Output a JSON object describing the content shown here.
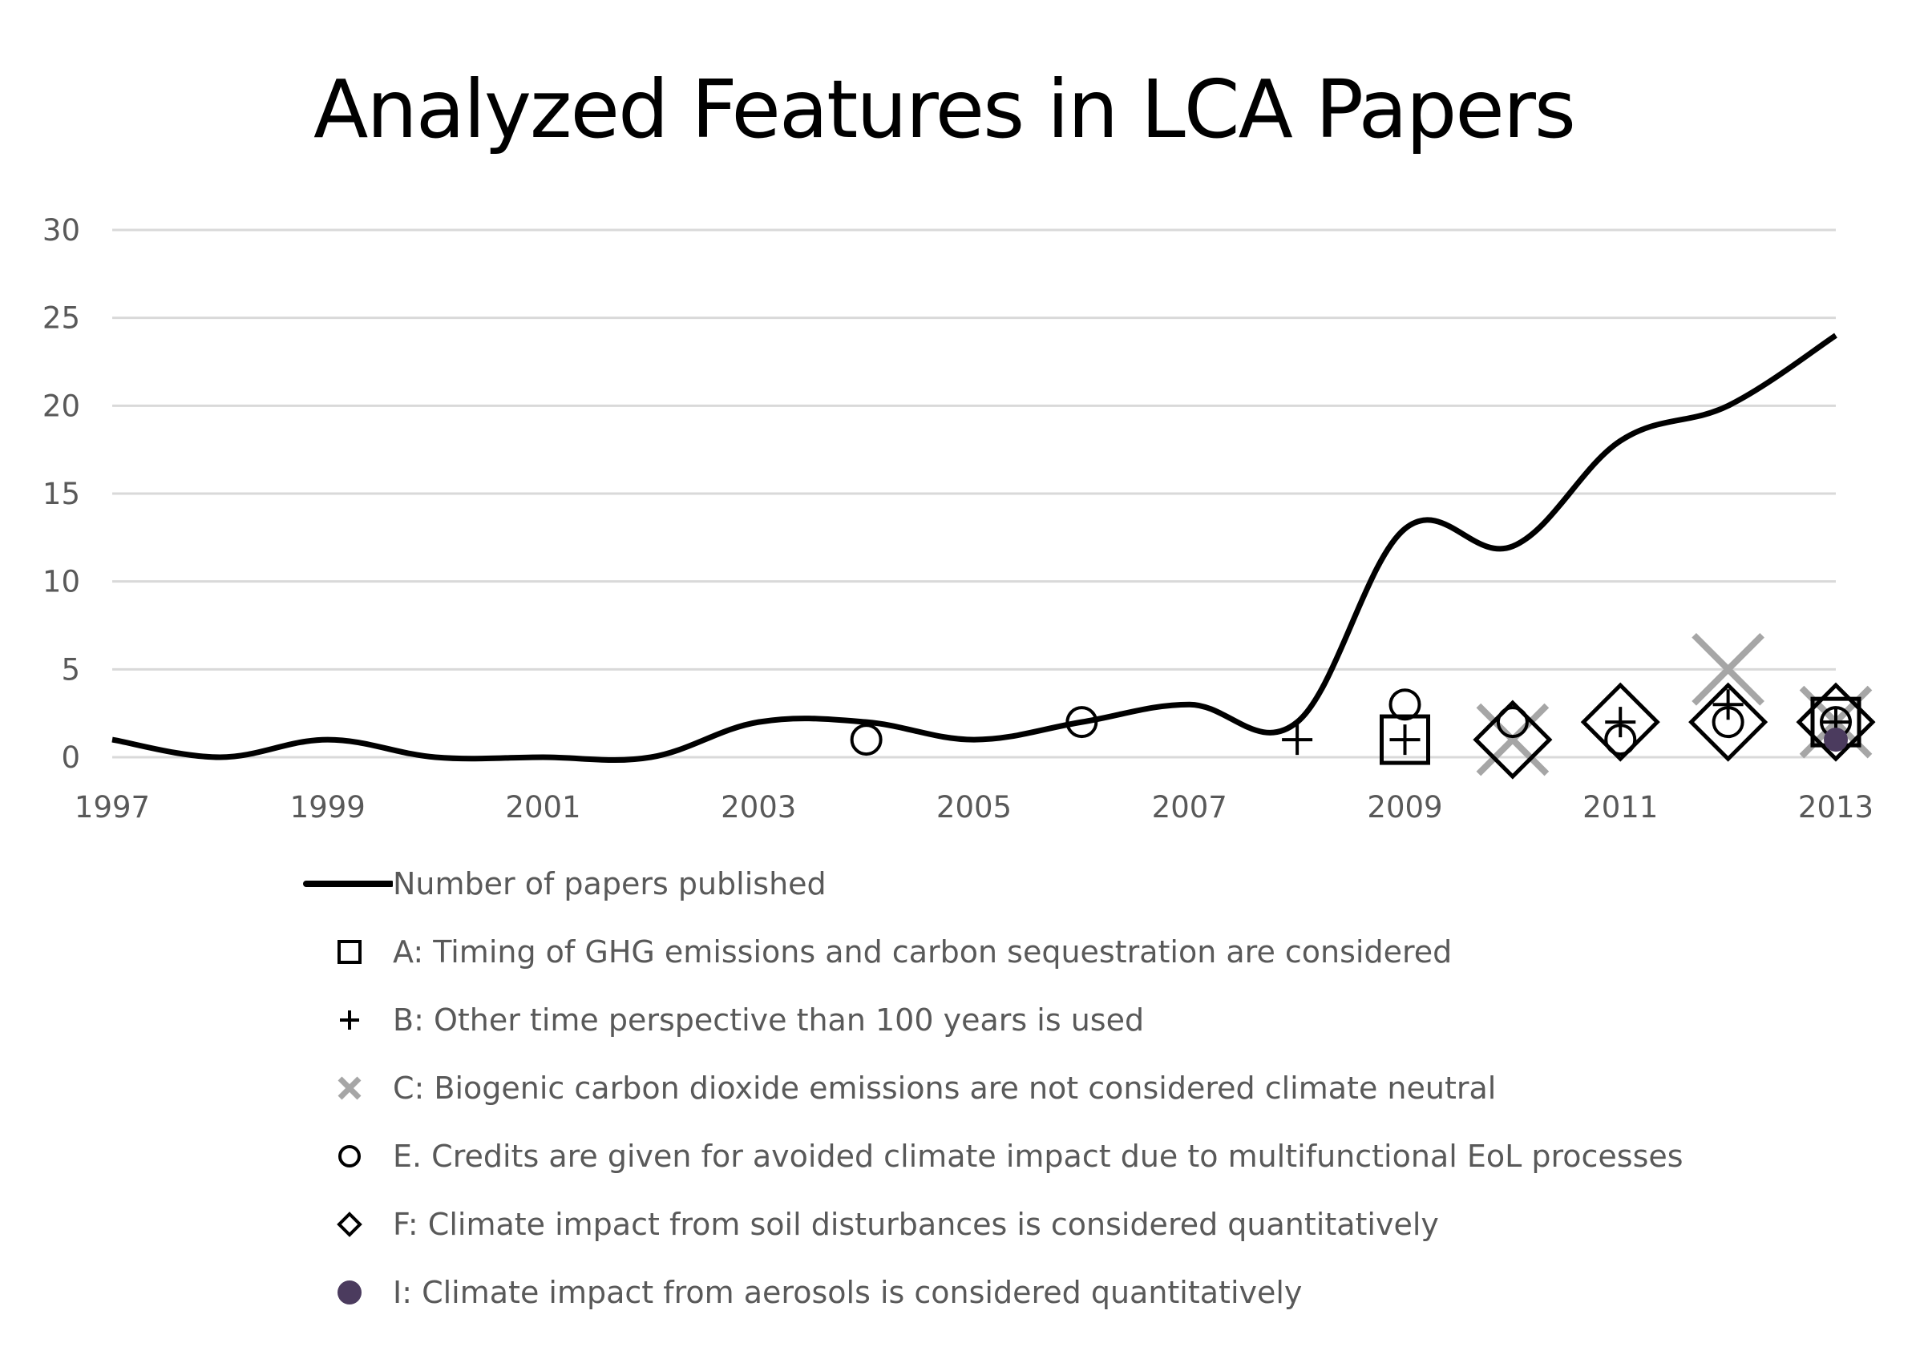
{
  "chart_data": {
    "type": "line",
    "title": "Analyzed Features in LCA Papers",
    "xlabel": "",
    "ylabel": "",
    "xlim": [
      1997,
      2013
    ],
    "ylim": [
      0,
      30
    ],
    "x_tick_labels": [
      "1997",
      "1999",
      "2001",
      "2003",
      "2005",
      "2007",
      "2009",
      "2011",
      "2013"
    ],
    "y_tick_labels": [
      "0",
      "5",
      "10",
      "15",
      "20",
      "25",
      "30"
    ],
    "grid": true,
    "legend_position": "bottom",
    "series": [
      {
        "name": "Number of papers published",
        "marker": "line",
        "color": "#000000",
        "points": [
          [
            1997,
            1
          ],
          [
            1998,
            0
          ],
          [
            1999,
            1
          ],
          [
            2000,
            0
          ],
          [
            2001,
            0
          ],
          [
            2002,
            0
          ],
          [
            2003,
            2
          ],
          [
            2004,
            2
          ],
          [
            2005,
            1
          ],
          [
            2006,
            2
          ],
          [
            2007,
            3
          ],
          [
            2008,
            2
          ],
          [
            2009,
            13
          ],
          [
            2010,
            12
          ],
          [
            2011,
            18
          ],
          [
            2012,
            20
          ],
          [
            2013,
            24
          ]
        ]
      },
      {
        "name": "A: Timing of GHG emissions and carbon sequestration are considered",
        "marker": "square",
        "color": "#000000",
        "points": [
          [
            2009,
            1
          ],
          [
            2013,
            2
          ]
        ]
      },
      {
        "name": "B: Other time perspective than 100 years is used",
        "marker": "plus",
        "color": "#000000",
        "points": [
          [
            2008,
            1
          ],
          [
            2009,
            1
          ],
          [
            2011,
            2
          ],
          [
            2012,
            3
          ],
          [
            2013,
            2
          ]
        ]
      },
      {
        "name": "C: Biogenic carbon dioxide emissions are not considered climate neutral",
        "marker": "x",
        "color": "#a6a6a6",
        "points": [
          [
            2010,
            1
          ],
          [
            2012,
            5
          ],
          [
            2013,
            2
          ]
        ]
      },
      {
        "name": "E. Credits are given for avoided climate impact due to multifunctional EoL processes",
        "marker": "circle",
        "color": "#000000",
        "points": [
          [
            2004,
            1
          ],
          [
            2006,
            2
          ],
          [
            2009,
            3
          ],
          [
            2010,
            2
          ],
          [
            2011,
            1
          ],
          [
            2012,
            2
          ],
          [
            2013,
            2
          ]
        ]
      },
      {
        "name": "F: Climate impact from soil disturbances is considered quantitatively",
        "marker": "diamond",
        "color": "#000000",
        "points": [
          [
            2010,
            1
          ],
          [
            2011,
            2
          ],
          [
            2012,
            2
          ],
          [
            2013,
            2
          ]
        ]
      },
      {
        "name": "I: Climate impact from aerosols is considered quantitatively",
        "marker": "filled-circle",
        "color": "#4b3b5e",
        "points": [
          [
            2013,
            1
          ]
        ]
      }
    ]
  }
}
